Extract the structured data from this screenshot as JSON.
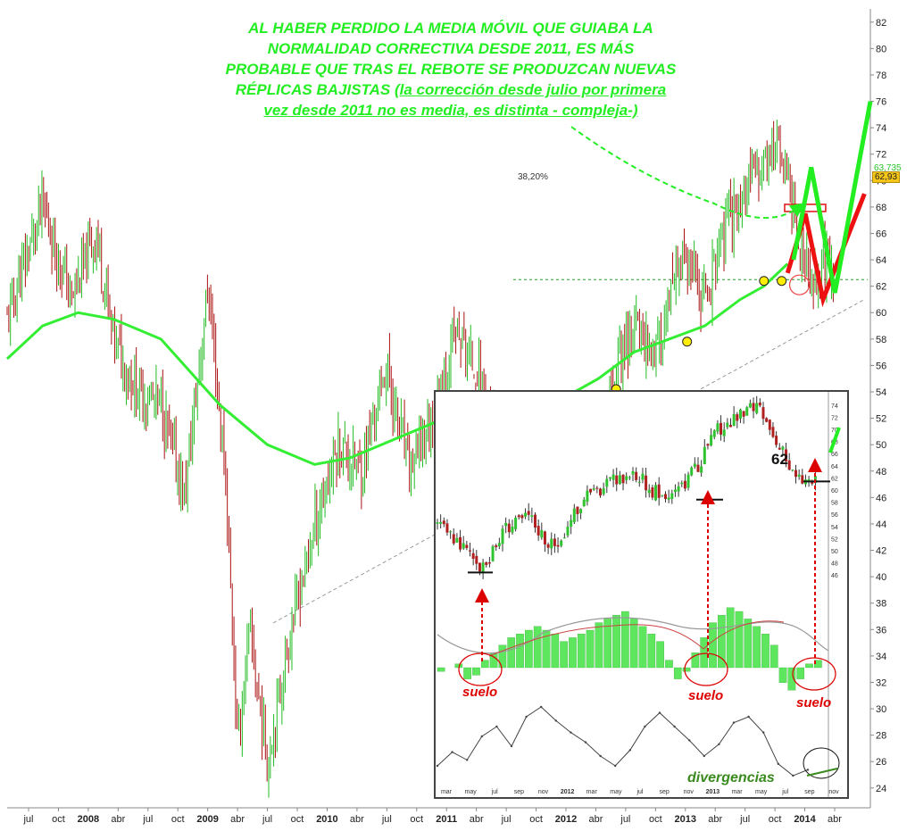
{
  "headline": {
    "line1": "AL HABER PERDIDO LA MEDIA MÓVIL QUE GUIABA LA",
    "line2": "NORMALIDAD CORRECTIVA DESDE 2011, ES MÁS",
    "line3": "PROBABLE QUE TRAS EL REBOTE SE PRODUZCAN NUEVAS",
    "line4a": "RÉPLICAS BAJISTAS ",
    "line4b": "(la corrección desde julio por primera",
    "line5": "vez desde 2011 no es media, es distinta - compleja-)"
  },
  "fib_label": "38,20%",
  "price_tags": {
    "ma": "63,735",
    "last": "62,93"
  },
  "inset_labels": {
    "suelo1": "suelo",
    "suelo2": "suelo",
    "suelo3": "suelo",
    "divergencias": "divergencias",
    "level": "62"
  },
  "colors": {
    "up": "#22bb22",
    "down": "#aa1111",
    "ma": "#33ee33",
    "forecast_green": "#22ee22",
    "forecast_red": "#ee1111",
    "annotation_red": "#dd0000",
    "marker": "#ffee00"
  },
  "chart_data": [
    {
      "type": "candlestick",
      "title": "",
      "y_axis_side": "right",
      "ylim": [
        22.5,
        83
      ],
      "y_ticks": [
        24,
        26,
        28,
        30,
        32,
        34,
        36,
        38,
        40,
        42,
        44,
        46,
        48,
        50,
        52,
        54,
        56,
        58,
        60,
        62,
        64,
        66,
        68,
        70,
        72,
        74,
        76,
        78,
        80,
        82
      ],
      "x_ticks": [
        "jul",
        "oct",
        "2008",
        "abr",
        "jul",
        "oct",
        "2009",
        "abr",
        "jul",
        "oct",
        "2010",
        "abr",
        "jul",
        "oct",
        "2011",
        "abr",
        "jul",
        "oct",
        "2012",
        "abr",
        "jul",
        "oct",
        "2013",
        "abr",
        "jul",
        "oct",
        "2014",
        "abr"
      ],
      "price_path": [
        [
          0,
          59.5
        ],
        [
          6,
          68
        ],
        [
          11,
          61
        ],
        [
          15,
          66
        ],
        [
          18,
          58
        ],
        [
          22,
          54
        ],
        [
          26,
          53
        ],
        [
          30,
          46
        ],
        [
          34,
          62
        ],
        [
          37,
          47
        ],
        [
          39,
          27
        ],
        [
          41,
          36
        ],
        [
          44,
          26
        ],
        [
          48,
          36
        ],
        [
          52,
          44
        ],
        [
          56,
          50
        ],
        [
          60,
          48
        ],
        [
          64,
          56
        ],
        [
          68,
          48
        ],
        [
          72,
          52
        ],
        [
          76,
          58.5
        ],
        [
          80,
          55
        ],
        [
          84,
          49
        ],
        [
          88,
          47
        ],
        [
          92,
          44.5
        ],
        [
          96,
          48
        ],
        [
          100,
          47
        ],
        [
          103,
          56
        ],
        [
          106,
          59
        ],
        [
          110,
          57
        ],
        [
          114,
          64
        ],
        [
          118,
          61
        ],
        [
          122,
          67
        ],
        [
          126,
          70
        ],
        [
          130,
          73
        ],
        [
          132,
          70
        ],
        [
          134,
          65
        ],
        [
          136,
          62
        ],
        [
          138,
          64
        ],
        [
          140,
          62.9
        ]
      ],
      "moving_average": {
        "type": "line",
        "values": [
          [
            0,
            56.5
          ],
          [
            6,
            59
          ],
          [
            12,
            60
          ],
          [
            18,
            59.5
          ],
          [
            26,
            58
          ],
          [
            30,
            56
          ],
          [
            36,
            53
          ],
          [
            44,
            50
          ],
          [
            52,
            48.5
          ],
          [
            58,
            49
          ],
          [
            66,
            50.5
          ],
          [
            74,
            52
          ],
          [
            80,
            52.5
          ],
          [
            88,
            52.5
          ],
          [
            94,
            53.5
          ],
          [
            100,
            55
          ],
          [
            106,
            57
          ],
          [
            112,
            58
          ],
          [
            118,
            59
          ],
          [
            124,
            61
          ],
          [
            128,
            62
          ],
          [
            132,
            63.7
          ]
        ]
      },
      "fibonacci": {
        "level": "38,20%",
        "value": 62.5
      },
      "support_line": {
        "from": [
          45,
          36.5
        ],
        "to": [
          145,
          61
        ]
      },
      "markers": [
        [
          103,
          54.2
        ],
        [
          115,
          57.8
        ],
        [
          128,
          62.4
        ],
        [
          131,
          62.4
        ]
      ],
      "last_price": 62.93,
      "ma_last": 63.735,
      "forecast": {
        "green_zigzag": [
          [
            133,
            64
          ],
          [
            136,
            71
          ],
          [
            140,
            61.5
          ],
          [
            146,
            76
          ]
        ],
        "red_zigzag": [
          [
            132,
            63
          ],
          [
            135,
            67.5
          ],
          [
            138,
            61
          ],
          [
            145,
            69
          ]
        ]
      }
    },
    {
      "type": "candlestick",
      "title": "",
      "panel": "inset",
      "y_ticks": [
        46,
        48,
        50,
        52,
        54,
        56,
        58,
        60,
        62,
        64,
        66,
        68,
        70,
        72,
        74
      ],
      "x_ticks": [
        "mar",
        "may",
        "jul",
        "sep",
        "nov",
        "2012",
        "mar",
        "may",
        "jul",
        "sep",
        "nov",
        "2013",
        "mar",
        "may",
        "jul",
        "sep",
        "nov"
      ],
      "ylim": [
        45,
        75
      ],
      "price_path": [
        [
          0,
          54.5
        ],
        [
          3,
          52
        ],
        [
          7,
          47
        ],
        [
          10,
          53
        ],
        [
          14,
          56
        ],
        [
          18,
          50
        ],
        [
          22,
          58
        ],
        [
          26,
          61
        ],
        [
          30,
          63
        ],
        [
          33,
          60
        ],
        [
          36,
          59
        ],
        [
          40,
          64
        ],
        [
          43,
          70
        ],
        [
          46,
          72
        ],
        [
          49,
          74
        ],
        [
          52,
          68
        ],
        [
          55,
          62
        ],
        [
          58,
          61.5
        ]
      ],
      "floor_levels": [
        47,
        59,
        62
      ],
      "level_label": "62",
      "histogram": [
        -1,
        0,
        1,
        -3,
        -2,
        2,
        4,
        6,
        8,
        9,
        10,
        11,
        10,
        9,
        7,
        8,
        9,
        10,
        12,
        13,
        14,
        15,
        13,
        11,
        9,
        7,
        2,
        -3,
        -1,
        4,
        8,
        12,
        14,
        16,
        15,
        13,
        11,
        9,
        6,
        -4,
        -6,
        -3,
        1,
        2
      ],
      "oscillator_line": [
        24.5,
        25.2,
        24.8,
        26.0,
        26.5,
        25.5,
        27.0,
        27.5,
        26.8,
        26.2,
        25.7,
        25.0,
        24.5,
        25.3,
        26.5,
        27.2,
        26.5,
        25.8,
        25.0,
        25.6,
        26.7,
        27.0,
        26.2,
        24.6,
        24.0,
        24.3
      ]
    }
  ]
}
